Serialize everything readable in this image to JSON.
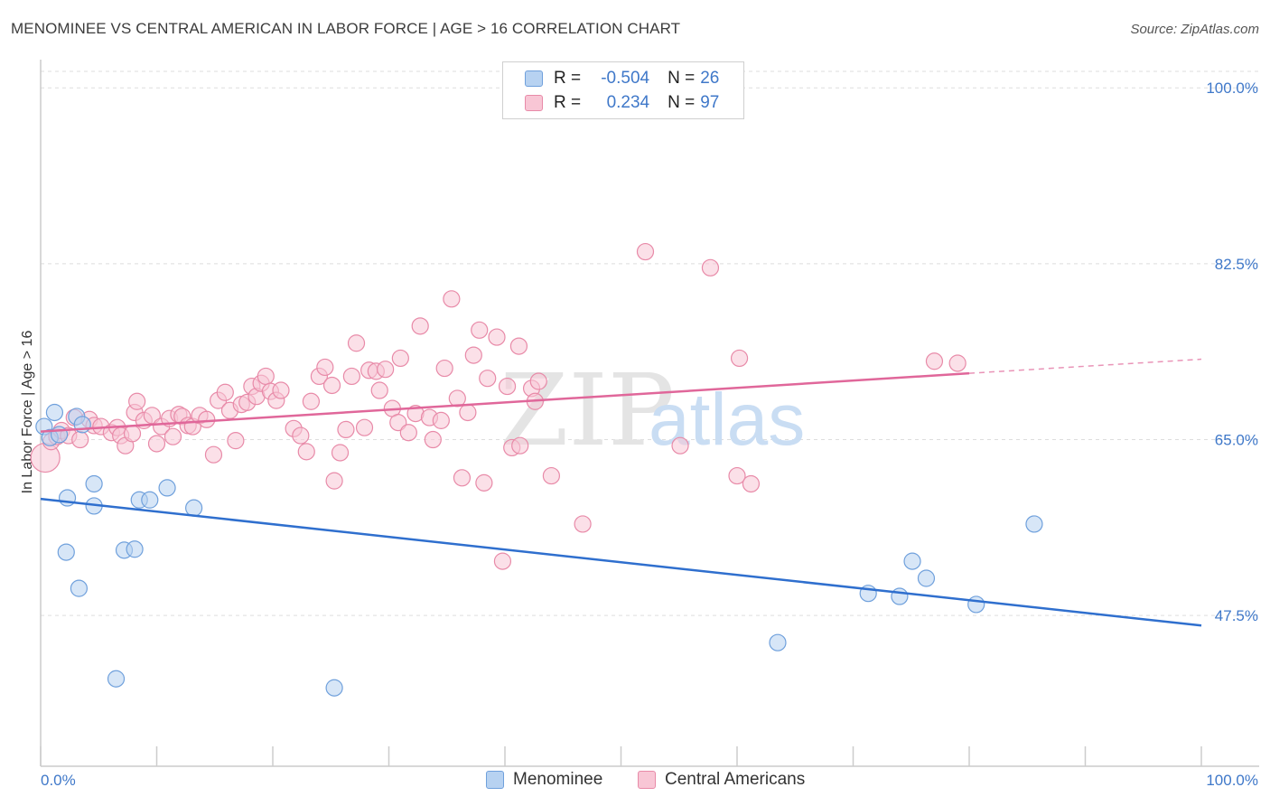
{
  "title": "MENOMINEE VS CENTRAL AMERICAN IN LABOR FORCE | AGE > 16 CORRELATION CHART",
  "source": "Source: ZipAtlas.com",
  "watermark": {
    "part1": "ZIP",
    "part2": "atlas"
  },
  "legend_top": [
    {
      "r_label": "R =",
      "r_value": "-0.504",
      "n_label": "N =",
      "n_value": "26",
      "color": "#9dc3ec"
    },
    {
      "r_label": "R =",
      "r_value": "0.234",
      "n_label": "N =",
      "n_value": "97",
      "color": "#f5b3c8"
    }
  ],
  "legend_bottom": [
    {
      "label": "Menominee",
      "color": "#9dc3ec"
    },
    {
      "label": "Central Americans",
      "color": "#f5b3c8"
    }
  ],
  "colors": {
    "blue_fill": "#b7d2f1",
    "blue_stroke": "#6fa0dc",
    "blue_line": "#2f6fce",
    "pink_fill": "#f8c6d5",
    "pink_stroke": "#e88aa8",
    "pink_line": "#e0679a",
    "tick_text": "#3f78c9",
    "grid": "#dddddd",
    "axis": "#cccccc"
  },
  "chart_data": {
    "type": "scatter",
    "title": "MENOMINEE VS CENTRAL AMERICAN IN LABOR FORCE | AGE > 16 CORRELATION CHART",
    "xlabel": "",
    "ylabel": "In Labor Force | Age > 16",
    "xlim": [
      0,
      100
    ],
    "ylim": [
      32.5,
      102
    ],
    "x_tick_labels": [
      "0.0%",
      "100.0%"
    ],
    "y_ticks": [
      47.5,
      65.0,
      82.5,
      100.0
    ],
    "y_tick_labels": [
      "47.5%",
      "65.0%",
      "82.5%",
      "100.0%"
    ],
    "grid": true,
    "legend_position": "top-center",
    "series": [
      {
        "name": "Menominee",
        "r": -0.504,
        "n": 26,
        "trend": {
          "x": [
            0,
            100
          ],
          "y": [
            59.1,
            46.5
          ]
        },
        "points": [
          [
            0.3,
            66.3
          ],
          [
            0.8,
            65.2
          ],
          [
            1.2,
            67.7
          ],
          [
            1.6,
            65.5
          ],
          [
            3.1,
            67.3
          ],
          [
            3.6,
            66.5
          ],
          [
            2.3,
            59.2
          ],
          [
            4.6,
            58.4
          ],
          [
            4.6,
            60.6
          ],
          [
            2.2,
            53.8
          ],
          [
            3.3,
            50.2
          ],
          [
            7.2,
            54.0
          ],
          [
            8.1,
            54.1
          ],
          [
            8.5,
            59.0
          ],
          [
            9.4,
            59.0
          ],
          [
            10.9,
            60.2
          ],
          [
            13.2,
            58.2
          ],
          [
            6.5,
            41.2
          ],
          [
            25.3,
            40.3
          ],
          [
            63.5,
            44.8
          ],
          [
            71.3,
            49.7
          ],
          [
            74.0,
            49.4
          ],
          [
            75.1,
            52.9
          ],
          [
            76.3,
            51.2
          ],
          [
            80.6,
            48.6
          ],
          [
            85.6,
            56.6
          ]
        ]
      },
      {
        "name": "Central Americans",
        "r": 0.234,
        "n": 97,
        "trend": {
          "x": [
            0,
            80
          ],
          "y": [
            65.8,
            71.6
          ]
        },
        "trend_dashed": {
          "x": [
            80,
            100
          ],
          "y": [
            71.6,
            73.0
          ]
        },
        "points": [
          [
            0.4,
            63.2
          ],
          [
            0.9,
            64.8
          ],
          [
            1.4,
            65.3
          ],
          [
            1.8,
            65.9
          ],
          [
            2.4,
            65.4
          ],
          [
            3.4,
            65.0
          ],
          [
            2.9,
            67.2
          ],
          [
            4.2,
            67.0
          ],
          [
            4.6,
            66.4
          ],
          [
            5.2,
            66.3
          ],
          [
            6.1,
            65.7
          ],
          [
            6.6,
            66.2
          ],
          [
            6.9,
            65.4
          ],
          [
            7.3,
            64.4
          ],
          [
            7.9,
            65.6
          ],
          [
            8.1,
            67.7
          ],
          [
            8.3,
            68.8
          ],
          [
            8.9,
            66.9
          ],
          [
            9.6,
            67.4
          ],
          [
            10.0,
            64.6
          ],
          [
            10.4,
            66.3
          ],
          [
            11.1,
            67.1
          ],
          [
            11.4,
            65.3
          ],
          [
            11.9,
            67.5
          ],
          [
            12.2,
            67.3
          ],
          [
            12.7,
            66.4
          ],
          [
            13.1,
            66.3
          ],
          [
            13.7,
            67.4
          ],
          [
            14.3,
            67.0
          ],
          [
            14.9,
            63.5
          ],
          [
            15.3,
            68.9
          ],
          [
            15.9,
            69.7
          ],
          [
            16.3,
            67.9
          ],
          [
            16.8,
            64.9
          ],
          [
            17.3,
            68.5
          ],
          [
            17.8,
            68.7
          ],
          [
            18.2,
            70.3
          ],
          [
            18.6,
            69.3
          ],
          [
            19.0,
            70.6
          ],
          [
            19.4,
            71.3
          ],
          [
            19.8,
            69.8
          ],
          [
            20.3,
            68.9
          ],
          [
            20.7,
            69.9
          ],
          [
            21.8,
            66.1
          ],
          [
            22.4,
            65.4
          ],
          [
            22.9,
            63.8
          ],
          [
            23.3,
            68.8
          ],
          [
            24.0,
            71.3
          ],
          [
            24.5,
            72.2
          ],
          [
            25.1,
            70.4
          ],
          [
            25.3,
            60.9
          ],
          [
            25.8,
            63.7
          ],
          [
            26.3,
            66.0
          ],
          [
            26.8,
            71.3
          ],
          [
            27.2,
            74.6
          ],
          [
            27.9,
            66.2
          ],
          [
            28.3,
            71.9
          ],
          [
            28.9,
            71.8
          ],
          [
            29.2,
            69.9
          ],
          [
            29.7,
            72.0
          ],
          [
            30.3,
            68.1
          ],
          [
            30.8,
            66.7
          ],
          [
            31.0,
            73.1
          ],
          [
            31.7,
            65.7
          ],
          [
            32.3,
            67.6
          ],
          [
            32.7,
            76.3
          ],
          [
            33.5,
            67.2
          ],
          [
            33.8,
            65.0
          ],
          [
            34.5,
            66.9
          ],
          [
            34.8,
            72.1
          ],
          [
            35.4,
            79.0
          ],
          [
            35.9,
            69.1
          ],
          [
            36.3,
            61.2
          ],
          [
            36.8,
            67.7
          ],
          [
            37.3,
            73.4
          ],
          [
            37.8,
            75.9
          ],
          [
            38.2,
            60.7
          ],
          [
            38.5,
            71.1
          ],
          [
            39.3,
            75.2
          ],
          [
            39.8,
            52.9
          ],
          [
            40.2,
            70.3
          ],
          [
            40.6,
            64.2
          ],
          [
            41.2,
            74.3
          ],
          [
            41.3,
            64.4
          ],
          [
            42.3,
            70.1
          ],
          [
            42.6,
            68.8
          ],
          [
            42.9,
            70.8
          ],
          [
            44.0,
            61.4
          ],
          [
            46.7,
            56.6
          ],
          [
            52.1,
            83.7
          ],
          [
            55.1,
            64.4
          ],
          [
            57.7,
            82.1
          ],
          [
            60.0,
            61.4
          ],
          [
            60.2,
            73.1
          ],
          [
            61.2,
            60.6
          ],
          [
            77.0,
            72.8
          ],
          [
            79.0,
            72.6
          ]
        ]
      }
    ]
  }
}
